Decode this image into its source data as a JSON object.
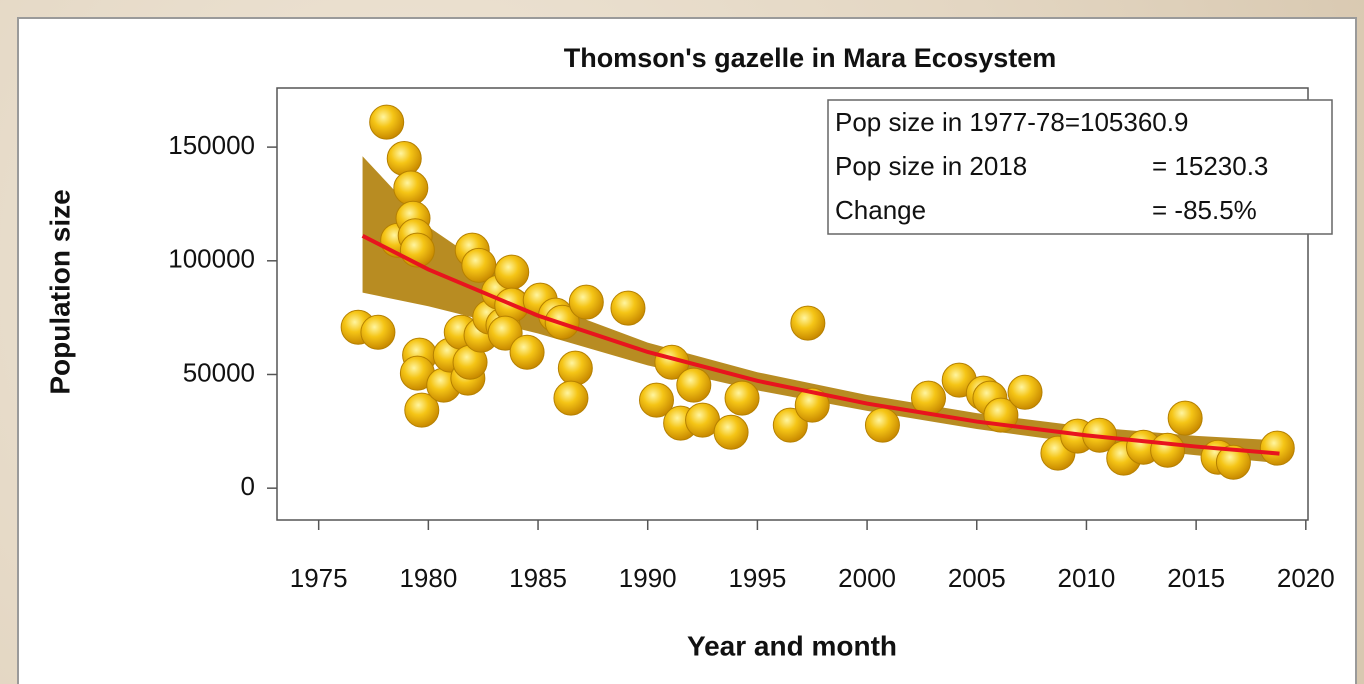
{
  "chart_data": {
    "type": "scatter",
    "title": "Thomson's gazelle in Mara Ecosystem",
    "x_label": "Year and month",
    "y_label": "Population size",
    "xlim": [
      1973.1,
      2020.1
    ],
    "ylim": [
      -14000,
      176000
    ],
    "xticks": [
      1975,
      1980,
      1985,
      1990,
      1995,
      2000,
      2005,
      2010,
      2015,
      2020
    ],
    "yticks": [
      0,
      50000,
      100000,
      150000
    ],
    "points": {
      "color": "#f2c010",
      "x": [
        1976.8,
        1977.7,
        1978.6,
        1978.1,
        1978.9,
        1979.2,
        1979.3,
        1979.4,
        1979.5,
        1979.6,
        1979.5,
        1979.7,
        1980.7,
        1981.0,
        1981.5,
        1981.8,
        1981.9,
        1982.0,
        1982.3,
        1982.4,
        1982.8,
        1983.2,
        1983.4,
        1983.8,
        1983.8,
        1983.5,
        1984.5,
        1985.1,
        1985.8,
        1986.1,
        1986.7,
        1986.5,
        1987.2,
        1989.1,
        1990.4,
        1991.1,
        1991.5,
        1992.1,
        1992.5,
        1993.8,
        1994.3,
        1996.5,
        1997.3,
        1997.5,
        2000.7,
        2002.8,
        2004.2,
        2005.3,
        2005.6,
        2006.1,
        2007.2,
        2008.7,
        2009.6,
        2010.6,
        2011.7,
        2012.6,
        2013.7,
        2014.5,
        2016.0,
        2016.7,
        2018.7
      ],
      "y": [
        70800,
        68600,
        109000,
        161000,
        145000,
        132000,
        118700,
        111000,
        104700,
        58500,
        50600,
        34300,
        45300,
        58500,
        68600,
        48400,
        55400,
        104700,
        98000,
        67300,
        75200,
        86200,
        71700,
        95000,
        80500,
        68200,
        59800,
        82700,
        76100,
        73000,
        52800,
        39600,
        81800,
        79200,
        38700,
        55400,
        28600,
        45300,
        29900,
        24600,
        39600,
        27700,
        72600,
        36500,
        27700,
        39600,
        47500,
        41800,
        39600,
        32100,
        42200,
        15400,
        22900,
        23300,
        13200,
        18000,
        16700,
        30800,
        13600,
        11400,
        17600
      ]
    },
    "trend": {
      "color": "#e8141e",
      "band_color": "#b07f0a",
      "x": [
        1977,
        1980,
        1985,
        1990,
        1995,
        2000,
        2005,
        2010,
        2015,
        2018.8
      ],
      "y": [
        111000,
        96200,
        75900,
        59900,
        47200,
        37200,
        29300,
        23200,
        18300,
        15200
      ],
      "upper": [
        146000,
        115000,
        82000,
        64000,
        51000,
        41000,
        33000,
        27000,
        23000,
        21000
      ],
      "lower": [
        86000,
        80000,
        68000,
        54000,
        43000,
        34000,
        26000,
        19500,
        14500,
        11000
      ]
    },
    "annotation": {
      "rows": [
        [
          "Pop size in 1977-78=105360.9"
        ],
        [
          "Pop size in 2018",
          "= 15230.3"
        ],
        [
          "Change",
          "= -85.5%"
        ]
      ]
    }
  }
}
